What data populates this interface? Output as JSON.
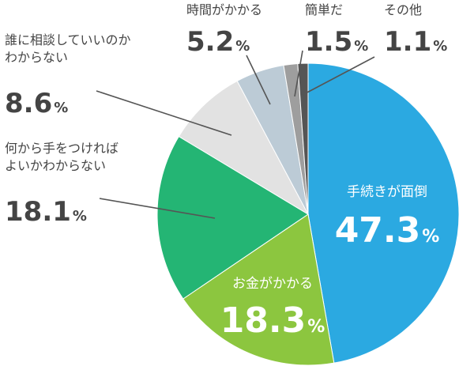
{
  "chart_data": {
    "type": "pie",
    "unit": "%",
    "slices": [
      {
        "label": "手続きが面倒",
        "value": 47.3,
        "color": "#2ba9e1"
      },
      {
        "label": "お金がかかる",
        "value": 18.3,
        "color": "#8cc63f"
      },
      {
        "label": "何から手をつければよいかわからない",
        "value": 18.1,
        "color": "#24b574"
      },
      {
        "label": "誰に相談していいのかわからない",
        "value": 8.6,
        "color": "#e2e2e2"
      },
      {
        "label": "時間がかかる",
        "value": 5.2,
        "color": "#bccbd6"
      },
      {
        "label": "簡単だ",
        "value": 1.5,
        "color": "#9e9e9e"
      },
      {
        "label": "その他",
        "value": 1.1,
        "color": "#555555"
      }
    ],
    "labels": [
      {
        "lines": [
          "手続きが面倒"
        ],
        "value": "47.3",
        "unit": "%"
      },
      {
        "lines": [
          "お金がかかる"
        ],
        "value": "18.3",
        "unit": "%"
      },
      {
        "lines": [
          "何から手をつければ",
          "よいかわからない"
        ],
        "value": "18.1",
        "unit": "%"
      },
      {
        "lines": [
          "誰に相談していいのか",
          "わからない"
        ],
        "value": "8.6",
        "unit": "%"
      },
      {
        "lines": [
          "時間がかかる"
        ],
        "value": "5.2",
        "unit": "%"
      },
      {
        "lines": [
          "簡単だ"
        ],
        "value": "1.5",
        "unit": "%"
      },
      {
        "lines": [
          "その他"
        ],
        "value": "1.1",
        "unit": "%"
      }
    ]
  }
}
